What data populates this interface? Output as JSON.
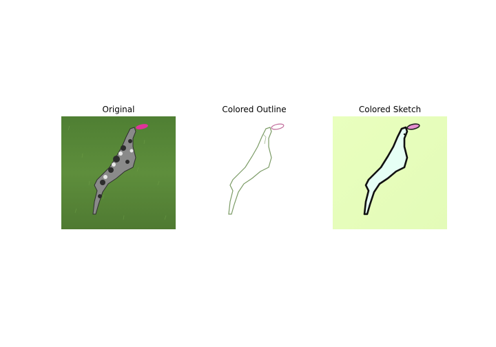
{
  "panels": [
    {
      "title": "Original"
    },
    {
      "title": "Colored Outline"
    },
    {
      "title": "Colored Sketch"
    }
  ],
  "colors": {
    "grass": "#5b8a3a",
    "grass_light": "#eaffc0",
    "dog_dark": "#3a3a3a",
    "frisbee": "#e0339a",
    "outline": "#6f8f5a"
  }
}
